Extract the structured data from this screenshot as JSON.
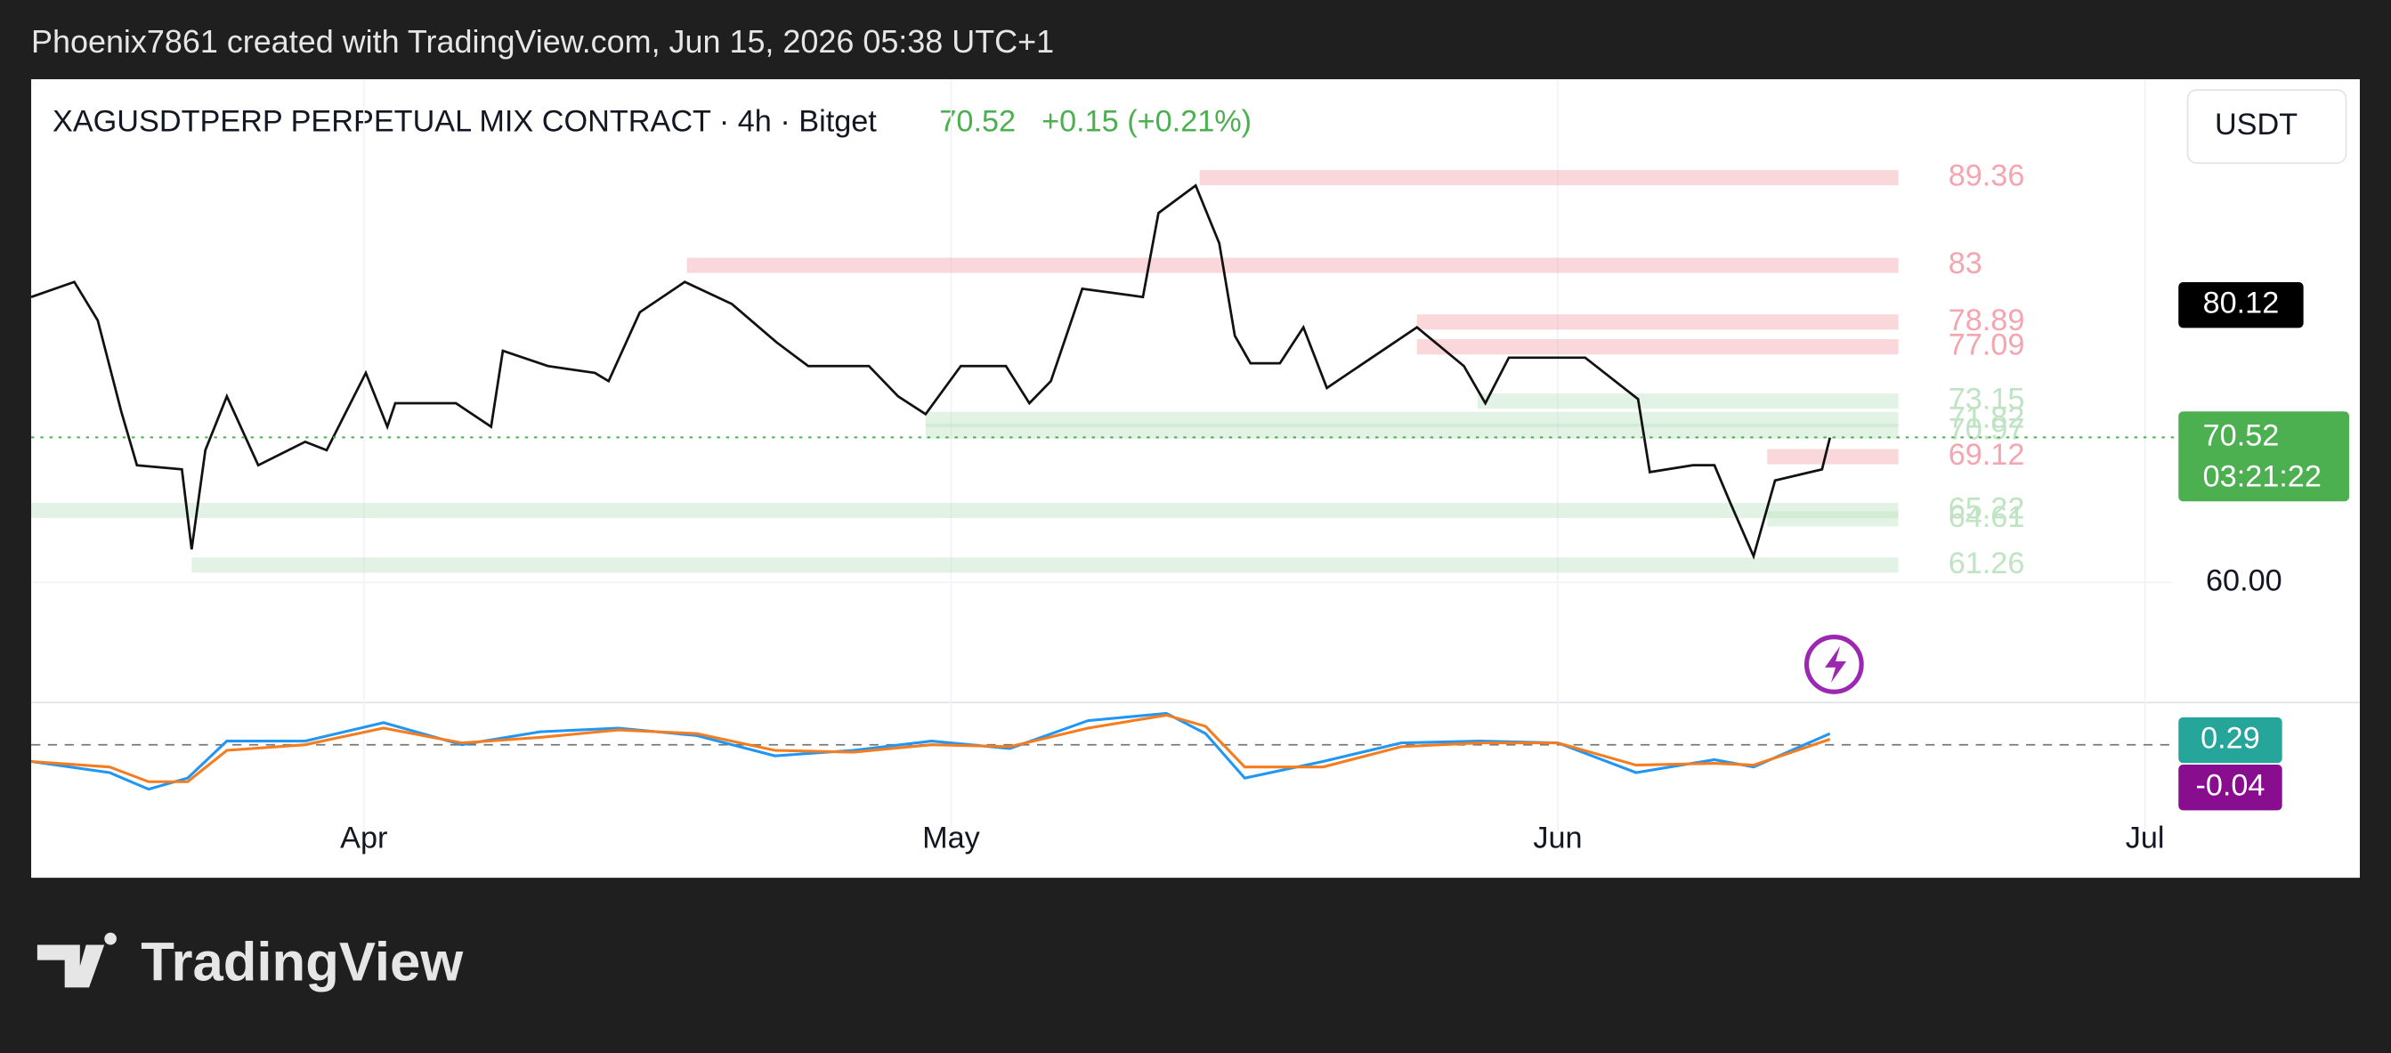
{
  "header": {
    "credit": "Phoenix7861 created with TradingView.com, Jun 15, 2026 05:38 UTC+1",
    "logo": "TradingView"
  },
  "chart_data": {
    "type": "line",
    "title": "XAGUSDTPERP PERPETUAL MIX CONTRACT · 4h · Bitget",
    "last_price": 70.52,
    "change": "+0.15 (+0.21%)",
    "currency": "USDT",
    "countdown": "03:21:22",
    "marker_price": 80.12,
    "xlim": [
      0,
      109.4
    ],
    "xticks": [
      {
        "value": 17,
        "label": "Apr"
      },
      {
        "value": 47,
        "label": "May"
      },
      {
        "value": 78,
        "label": "Jun"
      },
      {
        "value": 108,
        "label": "Jul"
      }
    ],
    "ylim": [
      51.4,
      96.5
    ],
    "yticks": [
      {
        "value": 60,
        "label": "60.00"
      }
    ],
    "grid": true,
    "series": [
      {
        "color": "#111111",
        "x": [
          0,
          2.2,
          3.4,
          4.6,
          5.4,
          7.7,
          8.2,
          8.9,
          10,
          11.6,
          14,
          15.1,
          17.1,
          18.2,
          18.6,
          21.7,
          23.5,
          24.1,
          26.4,
          28.8,
          29.5,
          31.1,
          33.4,
          35.8,
          38.1,
          39.7,
          42.8,
          44.3,
          45.7,
          47.5,
          49.8,
          51,
          52.1,
          53.7,
          56.8,
          57.6,
          59.5,
          60.7,
          61.5,
          62.3,
          63.8,
          65,
          66.2,
          68.5,
          70.8,
          73.2,
          74.3,
          75.5,
          79.4,
          82.1,
          82.7,
          84.9,
          86,
          86.8,
          88,
          89.1,
          91.5,
          91.9
        ],
        "values": [
          80.7,
          81.8,
          79.0,
          72.4,
          68.5,
          68.2,
          62.4,
          69.6,
          73.5,
          68.5,
          70.2,
          69.6,
          75.2,
          71.3,
          73.0,
          73.0,
          71.3,
          76.8,
          75.7,
          75.2,
          74.6,
          79.6,
          81.8,
          80.2,
          77.4,
          75.7,
          75.7,
          73.5,
          72.2,
          75.7,
          75.7,
          73.0,
          74.6,
          81.3,
          80.7,
          86.8,
          88.8,
          84.6,
          77.9,
          75.9,
          75.9,
          78.5,
          74.1,
          76.3,
          78.5,
          75.7,
          73.0,
          76.3,
          76.3,
          73.3,
          68.0,
          68.5,
          68.5,
          65.8,
          61.9,
          67.4,
          68.2,
          70.5
        ]
      }
    ],
    "levels": [
      {
        "value": 89.36,
        "from": 59.7,
        "color": "#f4a6b0"
      },
      {
        "value": 83,
        "from": 33.5,
        "color": "#f4a6b0"
      },
      {
        "value": 78.89,
        "from": 70.8,
        "color": "#f4a6b0"
      },
      {
        "value": 77.09,
        "from": 70.8,
        "color": "#f4a6b0"
      },
      {
        "value": 73.15,
        "from": 73.9,
        "color": "#bfe3c3"
      },
      {
        "value": 71.82,
        "from": 45.7,
        "color": "#bfe3c3"
      },
      {
        "value": 70.97,
        "from": 45.7,
        "color": "#bfe3c3"
      },
      {
        "value": 69.12,
        "from": 88.7,
        "color": "#f4a6b0"
      },
      {
        "value": 65.22,
        "from": 0,
        "color": "#bfe3c3"
      },
      {
        "value": 64.61,
        "from": 88.7,
        "color": "#bfe3c3"
      },
      {
        "value": 61.26,
        "from": 8.2,
        "color": "#bfe3c3"
      }
    ],
    "levels_to": 95.4,
    "indicator": {
      "ylim": [
        -4.3,
        2.2
      ],
      "x": [
        0,
        4,
        6,
        8,
        10,
        14,
        18,
        22,
        26,
        30,
        34,
        38,
        42,
        46,
        50,
        54,
        58,
        60,
        62,
        66,
        70,
        74,
        78,
        82,
        86,
        88,
        91.9
      ],
      "macd": [
        -0.9,
        -1.5,
        -2.4,
        -1.8,
        0.2,
        0.2,
        1.2,
        0.0,
        0.7,
        0.9,
        0.5,
        -0.6,
        -0.3,
        0.2,
        -0.2,
        1.3,
        1.7,
        0.6,
        -1.8,
        -0.9,
        0.1,
        0.2,
        0.1,
        -1.5,
        -0.8,
        -1.2,
        0.6
      ],
      "signal": [
        -0.9,
        -1.2,
        -2.0,
        -2.0,
        -0.3,
        0.0,
        0.9,
        0.1,
        0.4,
        0.8,
        0.6,
        -0.3,
        -0.4,
        0.0,
        -0.1,
        0.9,
        1.6,
        1.0,
        -1.2,
        -1.2,
        -0.1,
        0.1,
        0.1,
        -1.1,
        -1.0,
        -1.1,
        0.3
      ],
      "macd_color": "#2196f3",
      "signal_color": "#f57c1f",
      "last_values": [
        0.29,
        -0.04
      ]
    }
  }
}
